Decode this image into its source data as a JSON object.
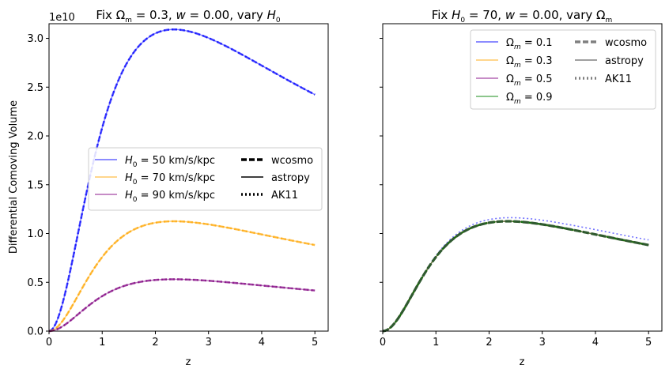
{
  "chart_data": [
    {
      "type": "line",
      "title": {
        "pre": "Fix Ω",
        "sub": "m",
        "mid": " = 0.3, ",
        "w": "w",
        "wval": " = 0.00, vary ",
        "vh": "H",
        "vsub": "0"
      },
      "xlabel": "z",
      "ylabel": "Differential Comoving Volume",
      "offset_label": "1e10",
      "xlim": [
        0,
        5.25
      ],
      "ylim": [
        0,
        3.15
      ],
      "xticks": [
        "0",
        "1",
        "2",
        "3",
        "4",
        "5"
      ],
      "yticks": [
        "0.0",
        "0.5",
        "1.0",
        "1.5",
        "2.0",
        "2.5",
        "3.0"
      ],
      "legend_position": "center-right",
      "series": [
        {
          "name": "H0 = 50 km/s/kpc",
          "label_main": "H",
          "label_sub": "0",
          "label_rest": " = 50 km/s/kpc",
          "color": "#0000ff",
          "peak": 2.98
        },
        {
          "name": "H0 = 70 km/s/kpc",
          "label_main": "H",
          "label_sub": "0",
          "label_rest": " = 70 km/s/kpc",
          "color": "#ffa500",
          "peak": 1.085
        },
        {
          "name": "H0 = 90 km/s/kpc",
          "label_main": "H",
          "label_sub": "0",
          "label_rest": " = 90 km/s/kpc",
          "color": "#800080",
          "peak": 0.512
        }
      ],
      "style_legend": [
        {
          "name": "wcosmo",
          "dash": "dashed"
        },
        {
          "name": "astropy",
          "dash": "solid"
        },
        {
          "name": "AK11",
          "dash": "dotted"
        }
      ]
    },
    {
      "type": "line",
      "title": {
        "pre": "Fix ",
        "vh": "H",
        "vsub": "0",
        "mid": " = 70, ",
        "w": "w",
        "wval": " = 0.00, vary Ω",
        "sub": "m"
      },
      "xlabel": "z",
      "ylabel": "",
      "xlim": [
        0,
        5.25
      ],
      "ylim": [
        0,
        3.15
      ],
      "xticks": [
        "0",
        "1",
        "2",
        "3",
        "4",
        "5"
      ],
      "legend_position": "upper-right",
      "series": [
        {
          "name": "Ωm = 0.1",
          "label_main": "Ω",
          "label_sub": "m",
          "label_rest": " = 0.1",
          "color": "#0000ff",
          "peak": 1.13
        },
        {
          "name": "Ωm = 0.3",
          "label_main": "Ω",
          "label_sub": "m",
          "label_rest": " = 0.3",
          "color": "#ffa500",
          "peak": 1.085
        },
        {
          "name": "Ωm = 0.5",
          "label_main": "Ω",
          "label_sub": "m",
          "label_rest": " = 0.5",
          "color": "#800080",
          "peak": 1.085
        },
        {
          "name": "Ωm = 0.9",
          "label_main": "Ω",
          "label_sub": "m",
          "label_rest": " = 0.9",
          "color": "#008000",
          "peak": 1.085
        }
      ],
      "style_legend": [
        {
          "name": "wcosmo",
          "dash": "dashed"
        },
        {
          "name": "astropy",
          "dash": "solid"
        },
        {
          "name": "AK11",
          "dash": "dotted"
        }
      ]
    }
  ]
}
